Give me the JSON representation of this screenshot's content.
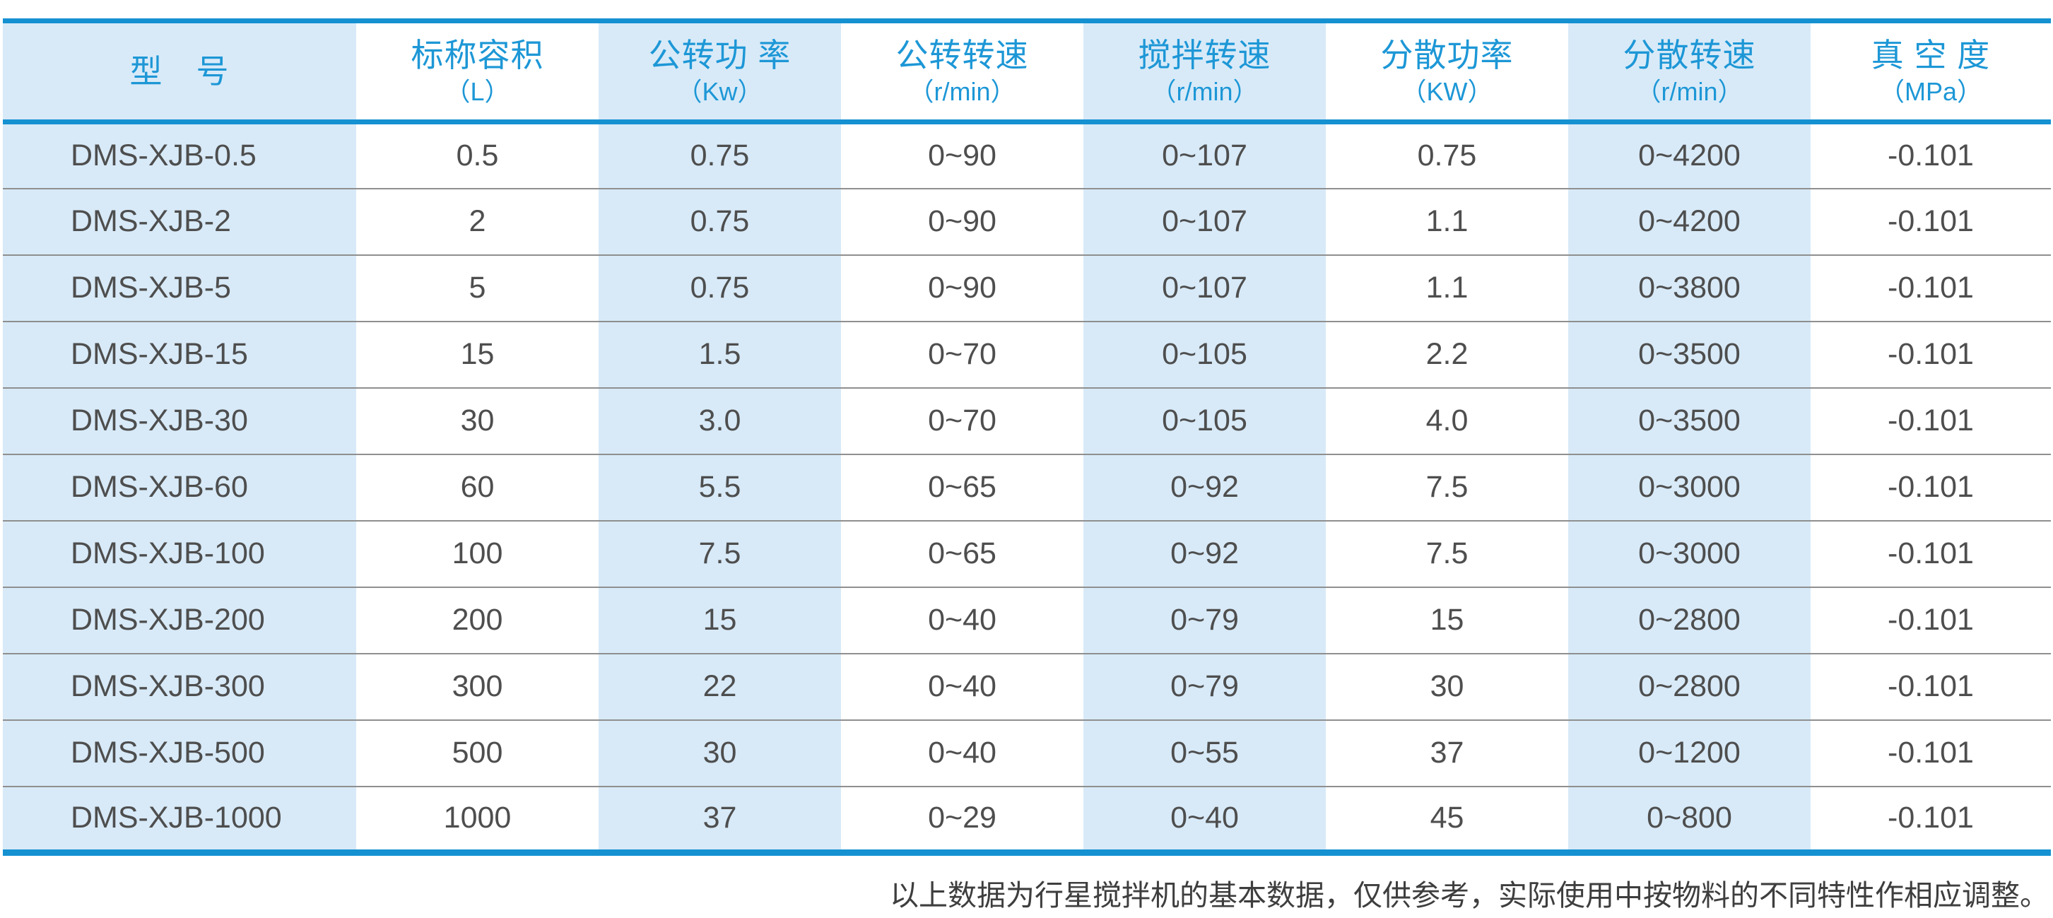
{
  "colors": {
    "accent_blue": "#1591d1",
    "header_text_blue": "#1d97d6",
    "stripe_light_blue": "#d8eaf8",
    "body_text": "#4e4e4e",
    "row_divider": "#8f8f8f"
  },
  "table": {
    "columns": [
      {
        "title": "型　号",
        "unit": ""
      },
      {
        "title": "标称容积",
        "unit": "（L）"
      },
      {
        "title": "公转功 率",
        "unit": "（Kw）"
      },
      {
        "title": "公转转速",
        "unit": "（r/min）"
      },
      {
        "title": "搅拌转速",
        "unit": "（r/min）"
      },
      {
        "title": "分散功率",
        "unit": "（KW）"
      },
      {
        "title": "分散转速",
        "unit": "（r/min）"
      },
      {
        "title": "真 空 度",
        "unit": "（MPa）"
      }
    ],
    "rows": [
      [
        "DMS-XJB-0.5",
        "0.5",
        "0.75",
        "0~90",
        "0~107",
        "0.75",
        "0~4200",
        "-0.101"
      ],
      [
        "DMS-XJB-2",
        "2",
        "0.75",
        "0~90",
        "0~107",
        "1.1",
        "0~4200",
        "-0.101"
      ],
      [
        "DMS-XJB-5",
        "5",
        "0.75",
        "0~90",
        "0~107",
        "1.1",
        "0~3800",
        "-0.101"
      ],
      [
        "DMS-XJB-15",
        "15",
        "1.5",
        "0~70",
        "0~105",
        "2.2",
        "0~3500",
        "-0.101"
      ],
      [
        "DMS-XJB-30",
        "30",
        "3.0",
        "0~70",
        "0~105",
        "4.0",
        "0~3500",
        "-0.101"
      ],
      [
        "DMS-XJB-60",
        "60",
        "5.5",
        "0~65",
        "0~92",
        "7.5",
        "0~3000",
        "-0.101"
      ],
      [
        "DMS-XJB-100",
        "100",
        "7.5",
        "0~65",
        "0~92",
        "7.5",
        "0~3000",
        "-0.101"
      ],
      [
        "DMS-XJB-200",
        "200",
        "15",
        "0~40",
        "0~79",
        "15",
        "0~2800",
        "-0.101"
      ],
      [
        "DMS-XJB-300",
        "300",
        "22",
        "0~40",
        "0~79",
        "30",
        "0~2800",
        "-0.101"
      ],
      [
        "DMS-XJB-500",
        "500",
        "30",
        "0~40",
        "0~55",
        "37",
        "0~1200",
        "-0.101"
      ],
      [
        "DMS-XJB-1000",
        "1000",
        "37",
        "0~29",
        "0~40",
        "45",
        "0~800",
        "-0.101"
      ]
    ]
  },
  "footnote": "以上数据为行星搅拌机的基本数据，仅供参考，实际使用中按物料的不同特性作相应调整。"
}
